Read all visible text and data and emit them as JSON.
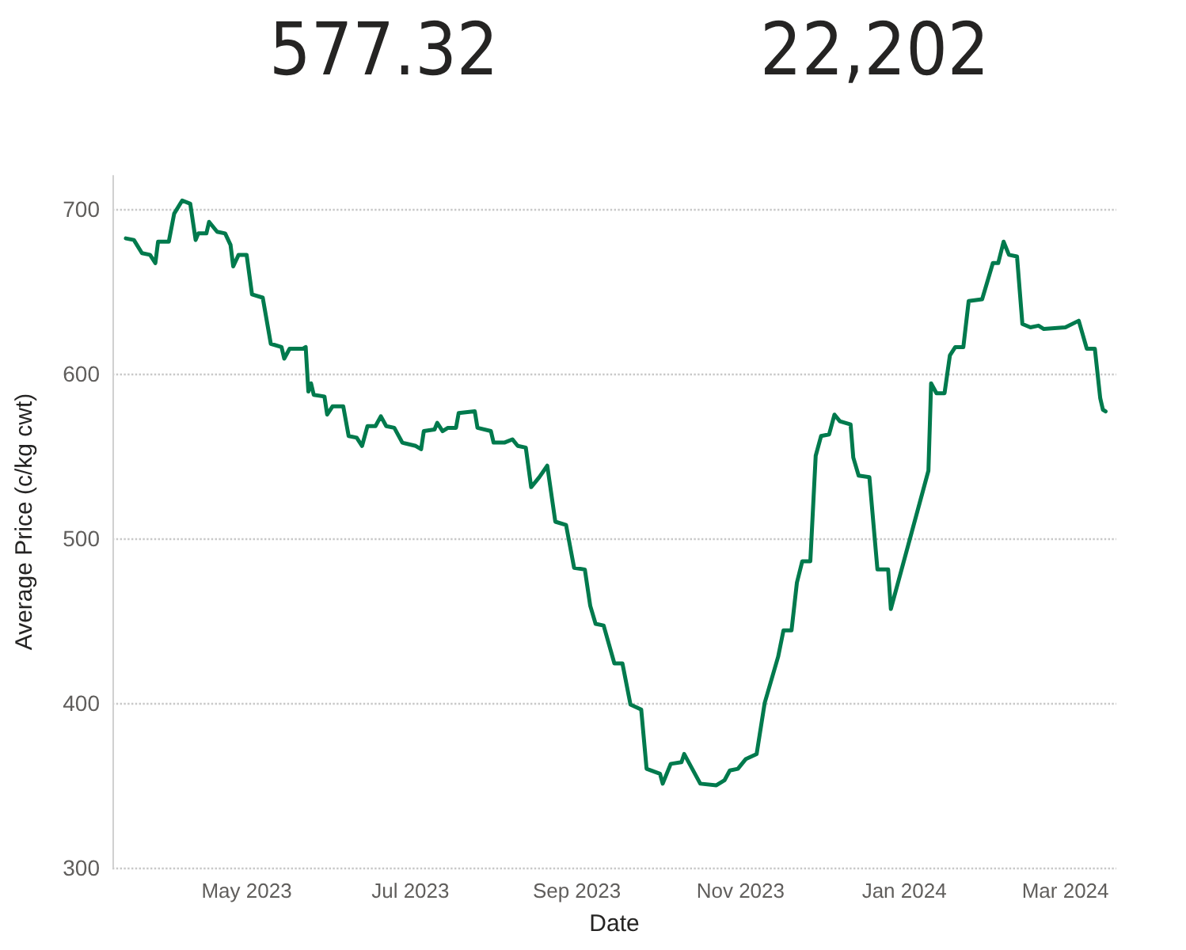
{
  "chart_data": {
    "type": "line",
    "xlabel": "Date",
    "ylabel": "Average Price (c/kg cwt)",
    "annotations": [
      "577.32",
      "22,202"
    ],
    "xlim": [
      "2023-03-12",
      "2024-03-20"
    ],
    "xticks": [
      {
        "value": "2023-05-01",
        "label": "May 2023"
      },
      {
        "value": "2023-07-01",
        "label": "Jul 2023"
      },
      {
        "value": "2023-09-01",
        "label": "Sep 2023"
      },
      {
        "value": "2023-11-01",
        "label": "Nov 2023"
      },
      {
        "value": "2024-01-01",
        "label": "Jan 2024"
      },
      {
        "value": "2024-03-01",
        "label": "Mar 2024"
      }
    ],
    "ylim": [
      300,
      720
    ],
    "yticks": [
      300,
      400,
      500,
      600,
      700
    ],
    "grid": "y",
    "marker": "none",
    "line_style": "solid",
    "x": [
      "2023-03-17",
      "2023-03-20",
      "2023-03-23",
      "2023-03-26",
      "2023-03-28",
      "2023-03-29",
      "2023-04-02",
      "2023-04-04",
      "2023-04-07",
      "2023-04-10",
      "2023-04-12",
      "2023-04-13",
      "2023-04-16",
      "2023-04-17",
      "2023-04-20",
      "2023-04-23",
      "2023-04-25",
      "2023-04-26",
      "2023-04-28",
      "2023-05-01",
      "2023-05-03",
      "2023-05-07",
      "2023-05-10",
      "2023-05-14",
      "2023-05-15",
      "2023-05-17",
      "2023-05-22",
      "2023-05-23",
      "2023-05-24",
      "2023-05-25",
      "2023-05-26",
      "2023-05-30",
      "2023-05-31",
      "2023-06-02",
      "2023-06-06",
      "2023-06-08",
      "2023-06-11",
      "2023-06-13",
      "2023-06-15",
      "2023-06-18",
      "2023-06-20",
      "2023-06-22",
      "2023-06-25",
      "2023-06-28",
      "2023-07-03",
      "2023-07-05",
      "2023-07-06",
      "2023-07-10",
      "2023-07-11",
      "2023-07-13",
      "2023-07-15",
      "2023-07-18",
      "2023-07-19",
      "2023-07-25",
      "2023-07-26",
      "2023-07-31",
      "2023-08-01",
      "2023-08-05",
      "2023-08-08",
      "2023-08-10",
      "2023-08-13",
      "2023-08-15",
      "2023-08-18",
      "2023-08-21",
      "2023-08-24",
      "2023-08-28",
      "2023-08-31",
      "2023-09-04",
      "2023-09-06",
      "2023-09-08",
      "2023-09-11",
      "2023-09-15",
      "2023-09-18",
      "2023-09-21",
      "2023-09-25",
      "2023-09-27",
      "2023-10-02",
      "2023-10-03",
      "2023-10-06",
      "2023-10-10",
      "2023-10-11",
      "2023-10-13",
      "2023-10-17",
      "2023-10-23",
      "2023-10-26",
      "2023-10-28",
      "2023-10-31",
      "2023-11-03",
      "2023-11-07",
      "2023-11-10",
      "2023-11-15",
      "2023-11-17",
      "2023-11-20",
      "2023-11-22",
      "2023-11-24",
      "2023-11-27",
      "2023-11-29",
      "2023-12-01",
      "2023-12-04",
      "2023-12-06",
      "2023-12-08",
      "2023-12-12",
      "2023-12-13",
      "2023-12-15",
      "2023-12-19",
      "2023-12-22",
      "2023-12-26",
      "2023-12-27",
      "2024-01-10",
      "2024-01-11",
      "2024-01-13",
      "2024-01-16",
      "2024-01-18",
      "2024-01-20",
      "2024-01-23",
      "2024-01-25",
      "2024-01-30",
      "2024-02-01",
      "2024-02-03",
      "2024-02-05",
      "2024-02-07",
      "2024-02-09",
      "2024-02-12",
      "2024-02-14",
      "2024-02-17",
      "2024-02-20",
      "2024-02-22",
      "2024-03-01",
      "2024-03-06",
      "2024-03-09",
      "2024-03-12",
      "2024-03-14",
      "2024-03-15",
      "2024-03-16"
    ],
    "series": [
      {
        "color": "#007a4d",
        "values": [
          682,
          681,
          673,
          672,
          667,
          680,
          680,
          697,
          705,
          703,
          681,
          685,
          685,
          692,
          686,
          685,
          678,
          665,
          672,
          672,
          648,
          646,
          618,
          616,
          609,
          615,
          615,
          616,
          589,
          594,
          587,
          586,
          575,
          580,
          580,
          562,
          561,
          556,
          568,
          568,
          574,
          568,
          567,
          558,
          556,
          554,
          565,
          566,
          570,
          565,
          567,
          567,
          576,
          577,
          567,
          565,
          558,
          558,
          560,
          556,
          555,
          531,
          537,
          544,
          510,
          508,
          482,
          481,
          459,
          448,
          447,
          424,
          424,
          399,
          396,
          360,
          357,
          351,
          363,
          364,
          369,
          363,
          351,
          350,
          353,
          359,
          360,
          366,
          369,
          400,
          428,
          444,
          444,
          473,
          486,
          486,
          550,
          562,
          563,
          575,
          571,
          569,
          549,
          538,
          537,
          481,
          481,
          457,
          541,
          594,
          588,
          588,
          611,
          616,
          616,
          644,
          645,
          656,
          667,
          667,
          680,
          672,
          671,
          630,
          628,
          629,
          627,
          628,
          632,
          615,
          615,
          585,
          578,
          577
        ]
      }
    ]
  }
}
